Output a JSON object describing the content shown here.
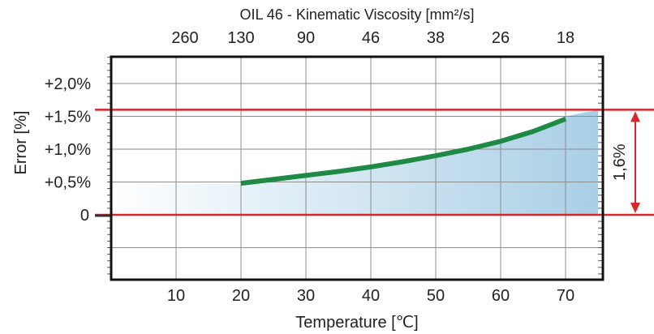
{
  "chart_data": {
    "type": "area",
    "top_axis": {
      "title": "OIL 46 - Kinematic Viscosity [mm²/s]",
      "ticks": [
        {
          "x": 0,
          "label": "260"
        },
        {
          "x": 20,
          "label": "130"
        },
        {
          "x": 30,
          "label": "90"
        },
        {
          "x": 40,
          "label": "46"
        },
        {
          "x": 50,
          "label": "38"
        },
        {
          "x": 60,
          "label": "26"
        },
        {
          "x": 70,
          "label": "18"
        }
      ]
    },
    "xlabel": "Temperature  [℃]",
    "ylabel": "Error [%]",
    "xlim": [
      0,
      75
    ],
    "ylim": [
      -1.0,
      2.6
    ],
    "x_ticks": [
      {
        "value": 10,
        "label": "10"
      },
      {
        "value": 20,
        "label": "20"
      },
      {
        "value": 30,
        "label": "30"
      },
      {
        "value": 40,
        "label": "40"
      },
      {
        "value": 50,
        "label": "50"
      },
      {
        "value": 60,
        "label": "60"
      },
      {
        "value": 70,
        "label": "70"
      }
    ],
    "y_ticks": [
      {
        "value": 0,
        "label": "0"
      },
      {
        "value": 0.5,
        "label": "+0,5%"
      },
      {
        "value": 1.0,
        "label": "+1,0%"
      },
      {
        "value": 1.5,
        "label": "+1,5%"
      },
      {
        "value": 2.0,
        "label": "+2,0%"
      }
    ],
    "grid": true,
    "series": [
      {
        "color": "#1e8a46",
        "x": [
          20,
          25,
          30,
          35,
          40,
          45,
          50,
          55,
          60,
          65,
          70
        ],
        "y": [
          0.48,
          0.54,
          0.6,
          0.66,
          0.73,
          0.81,
          0.9,
          1.0,
          1.12,
          1.27,
          1.46
        ]
      }
    ],
    "error_band": {
      "x": [
        0,
        10,
        20,
        25,
        30,
        35,
        40,
        45,
        50,
        55,
        60,
        65,
        70,
        75
      ],
      "y": [
        0.44,
        0.46,
        0.48,
        0.54,
        0.6,
        0.66,
        0.73,
        0.81,
        0.9,
        1.0,
        1.12,
        1.27,
        1.5,
        1.6
      ],
      "color": "#a9cfe6"
    },
    "reference_lines": [
      {
        "y": 1.6,
        "color": "#d8262b"
      },
      {
        "y": 0,
        "color": "#d8262b"
      }
    ],
    "annotation": {
      "label": "1,6%",
      "from": 0,
      "to": 1.6,
      "color": "#d8262b"
    }
  }
}
